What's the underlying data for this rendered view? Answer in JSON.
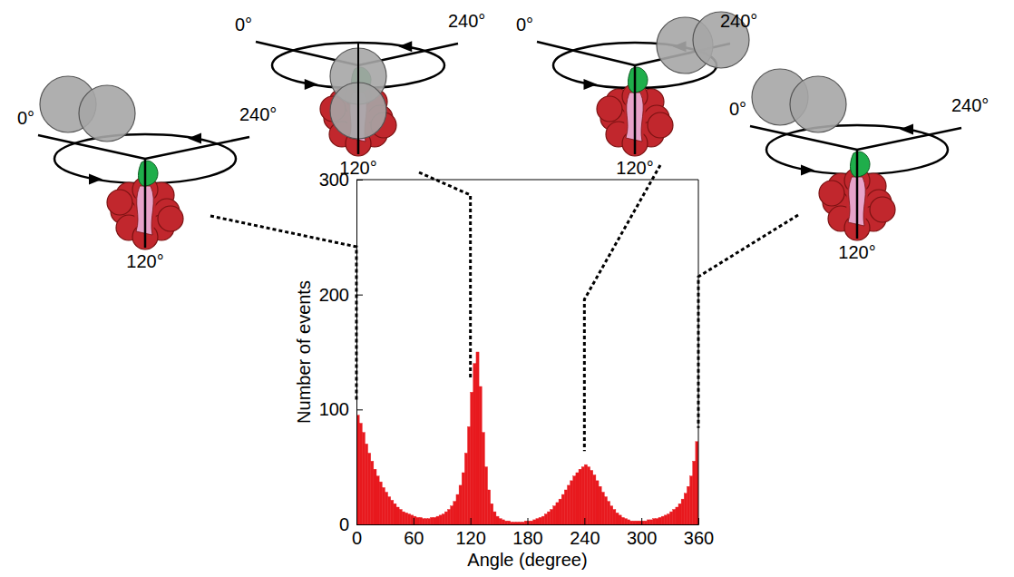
{
  "chart_data": {
    "type": "histogram",
    "x_label": "Angle (degree)",
    "y_label": "Number of events",
    "color": "#e8191e",
    "xlim": [
      0,
      360
    ],
    "ylim": [
      0,
      300
    ],
    "xticks": [
      0,
      60,
      120,
      180,
      240,
      300,
      360
    ],
    "yticks": [
      0,
      100,
      200,
      300
    ],
    "grid": false,
    "bins": [
      0,
      3,
      6,
      9,
      12,
      15,
      18,
      21,
      24,
      27,
      30,
      33,
      36,
      39,
      42,
      45,
      48,
      51,
      54,
      57,
      60,
      63,
      66,
      69,
      72,
      75,
      78,
      81,
      84,
      87,
      90,
      93,
      96,
      99,
      102,
      105,
      108,
      111,
      114,
      117,
      120,
      123,
      126,
      129,
      132,
      135,
      138,
      141,
      144,
      147,
      150,
      153,
      156,
      159,
      162,
      165,
      168,
      171,
      174,
      177,
      180,
      183,
      186,
      189,
      192,
      195,
      198,
      201,
      204,
      207,
      210,
      213,
      216,
      219,
      222,
      225,
      228,
      231,
      234,
      237,
      240,
      243,
      246,
      249,
      252,
      255,
      258,
      261,
      264,
      267,
      270,
      273,
      276,
      279,
      282,
      285,
      288,
      291,
      294,
      297,
      300,
      303,
      306,
      309,
      312,
      315,
      318,
      321,
      324,
      327,
      330,
      333,
      336,
      339,
      342,
      345,
      348,
      351,
      354,
      357,
      360
    ],
    "counts": [
      95,
      88,
      80,
      70,
      62,
      55,
      48,
      42,
      37,
      32,
      28,
      24,
      21,
      18,
      15,
      13,
      11,
      10,
      9,
      8,
      7,
      6,
      6,
      5,
      5,
      5,
      6,
      6,
      7,
      8,
      9,
      11,
      13,
      16,
      20,
      26,
      34,
      45,
      62,
      85,
      115,
      140,
      150,
      120,
      80,
      50,
      30,
      18,
      11,
      7,
      5,
      4,
      3,
      3,
      2,
      2,
      2,
      2,
      2,
      3,
      3,
      3,
      4,
      5,
      6,
      7,
      9,
      11,
      13,
      16,
      19,
      22,
      26,
      30,
      34,
      38,
      42,
      45,
      48,
      50,
      52,
      50,
      47,
      43,
      38,
      33,
      28,
      24,
      20,
      16,
      13,
      10,
      8,
      6,
      5,
      4,
      3,
      3,
      3,
      3,
      3,
      3,
      4,
      4,
      5,
      5,
      6,
      7,
      8,
      9,
      11,
      13,
      15,
      18,
      22,
      27,
      33,
      42,
      55,
      72
    ],
    "diagrams": [
      {
        "angle": 0,
        "labels": [
          "0°",
          "240°",
          "120°"
        ]
      },
      {
        "angle": 120,
        "labels": [
          "0°",
          "240°",
          "120°"
        ]
      },
      {
        "angle": 240,
        "labels": [
          "0°",
          "240°",
          "120°"
        ]
      },
      {
        "angle": 360,
        "labels": [
          "0°",
          "240°",
          "120°"
        ]
      }
    ]
  }
}
